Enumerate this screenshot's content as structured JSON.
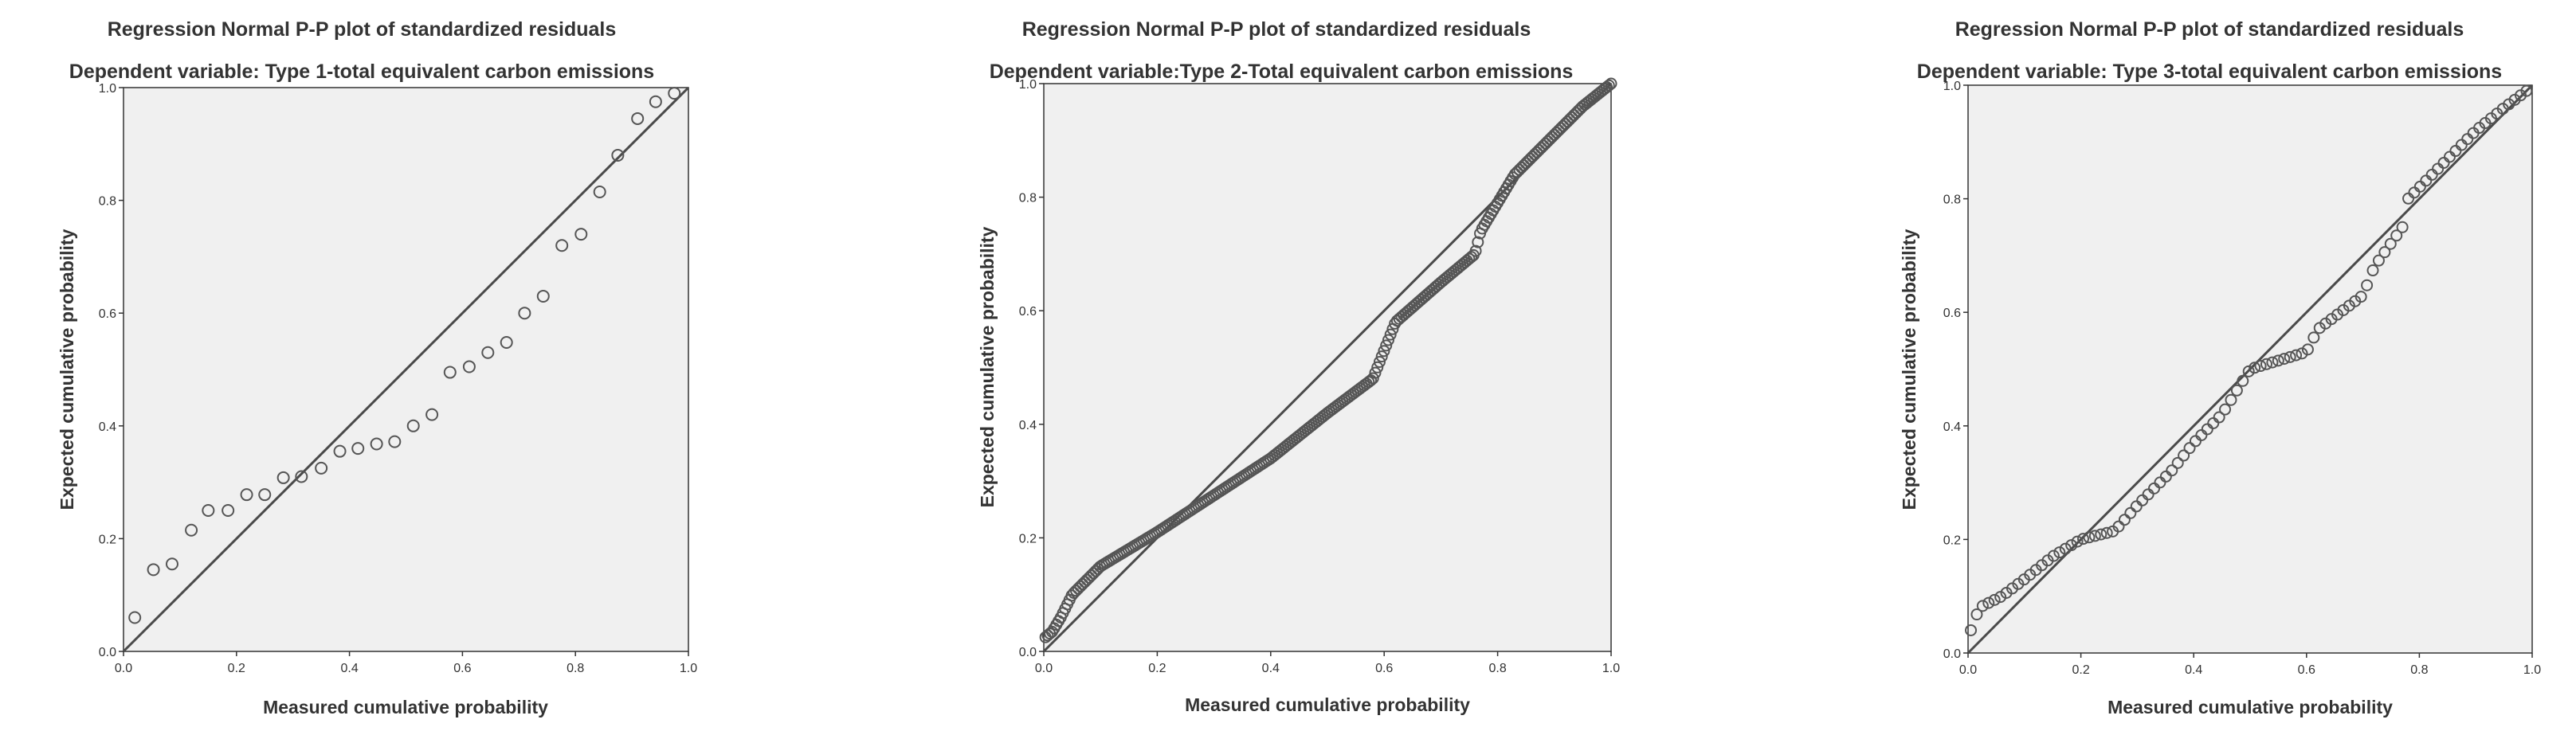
{
  "chart_data": [
    {
      "type": "scatter",
      "title": "Regression Normal P-P plot of standardized residuals",
      "subtitle": "Dependent variable: Type 1-total equivalent carbon emissions",
      "xlabel": "Measured cumulative probability",
      "ylabel": "Expected cumulative probability",
      "xlim": [
        0,
        1
      ],
      "ylim": [
        0,
        1
      ],
      "ticks": [
        "0.0",
        "0.2",
        "0.4",
        "0.6",
        "0.8",
        "1.0"
      ],
      "reference_line": "diagonal",
      "grid": false,
      "points": [
        [
          0.02,
          0.06
        ],
        [
          0.053,
          0.145
        ],
        [
          0.086,
          0.155
        ],
        [
          0.12,
          0.215
        ],
        [
          0.15,
          0.25
        ],
        [
          0.185,
          0.25
        ],
        [
          0.218,
          0.278
        ],
        [
          0.25,
          0.278
        ],
        [
          0.283,
          0.308
        ],
        [
          0.315,
          0.31
        ],
        [
          0.35,
          0.325
        ],
        [
          0.383,
          0.355
        ],
        [
          0.415,
          0.36
        ],
        [
          0.448,
          0.368
        ],
        [
          0.48,
          0.372
        ],
        [
          0.513,
          0.4
        ],
        [
          0.546,
          0.42
        ],
        [
          0.578,
          0.495
        ],
        [
          0.612,
          0.505
        ],
        [
          0.645,
          0.53
        ],
        [
          0.678,
          0.548
        ],
        [
          0.71,
          0.6
        ],
        [
          0.743,
          0.63
        ],
        [
          0.776,
          0.72
        ],
        [
          0.81,
          0.74
        ],
        [
          0.843,
          0.815
        ],
        [
          0.875,
          0.88
        ],
        [
          0.91,
          0.945
        ],
        [
          0.942,
          0.975
        ],
        [
          0.975,
          0.99
        ]
      ]
    },
    {
      "type": "scatter",
      "title": "Regression Normal P-P plot of standardized residuals",
      "subtitle": "Dependent variable:Type 2-Total equivalent carbon emissions",
      "xlabel": "Measured cumulative probability",
      "ylabel": "Expected cumulative probability",
      "xlim": [
        0,
        1
      ],
      "ylim": [
        0,
        1
      ],
      "ticks": [
        "0.0",
        "0.2",
        "0.4",
        "0.6",
        "0.8",
        "1.0"
      ],
      "reference_line": "diagonal",
      "grid": false,
      "curve": [
        [
          0.003,
          0.025
        ],
        [
          0.015,
          0.035
        ],
        [
          0.03,
          0.06
        ],
        [
          0.05,
          0.1
        ],
        [
          0.1,
          0.15
        ],
        [
          0.2,
          0.21
        ],
        [
          0.3,
          0.275
        ],
        [
          0.4,
          0.34
        ],
        [
          0.5,
          0.42
        ],
        [
          0.58,
          0.48
        ],
        [
          0.6,
          0.53
        ],
        [
          0.62,
          0.58
        ],
        [
          0.7,
          0.65
        ],
        [
          0.76,
          0.7
        ],
        [
          0.77,
          0.74
        ],
        [
          0.83,
          0.84
        ],
        [
          0.9,
          0.91
        ],
        [
          0.95,
          0.96
        ],
        [
          1.0,
          1.0
        ]
      ],
      "point_count": 260
    },
    {
      "type": "scatter",
      "title": "Regression Normal P-P plot of standardized residuals",
      "subtitle": "Dependent variable: Type 3-total equivalent carbon emissions",
      "xlabel": "Measured cumulative probability",
      "ylabel": "Expected cumulative probability",
      "xlim": [
        0,
        1
      ],
      "ylim": [
        0,
        1
      ],
      "ticks": [
        "0.0",
        "0.2",
        "0.4",
        "0.6",
        "0.8",
        "1.0"
      ],
      "reference_line": "diagonal",
      "grid": false,
      "curve": [
        [
          0.005,
          0.04
        ],
        [
          0.02,
          0.08
        ],
        [
          0.06,
          0.1
        ],
        [
          0.1,
          0.13
        ],
        [
          0.15,
          0.17
        ],
        [
          0.2,
          0.2
        ],
        [
          0.26,
          0.215
        ],
        [
          0.3,
          0.26
        ],
        [
          0.36,
          0.32
        ],
        [
          0.4,
          0.37
        ],
        [
          0.45,
          0.42
        ],
        [
          0.5,
          0.5
        ],
        [
          0.6,
          0.53
        ],
        [
          0.62,
          0.57
        ],
        [
          0.7,
          0.63
        ],
        [
          0.72,
          0.68
        ],
        [
          0.77,
          0.75
        ],
        [
          0.78,
          0.8
        ],
        [
          0.85,
          0.87
        ],
        [
          0.9,
          0.92
        ],
        [
          0.95,
          0.96
        ],
        [
          0.99,
          0.99
        ]
      ],
      "point_count": 95
    }
  ]
}
